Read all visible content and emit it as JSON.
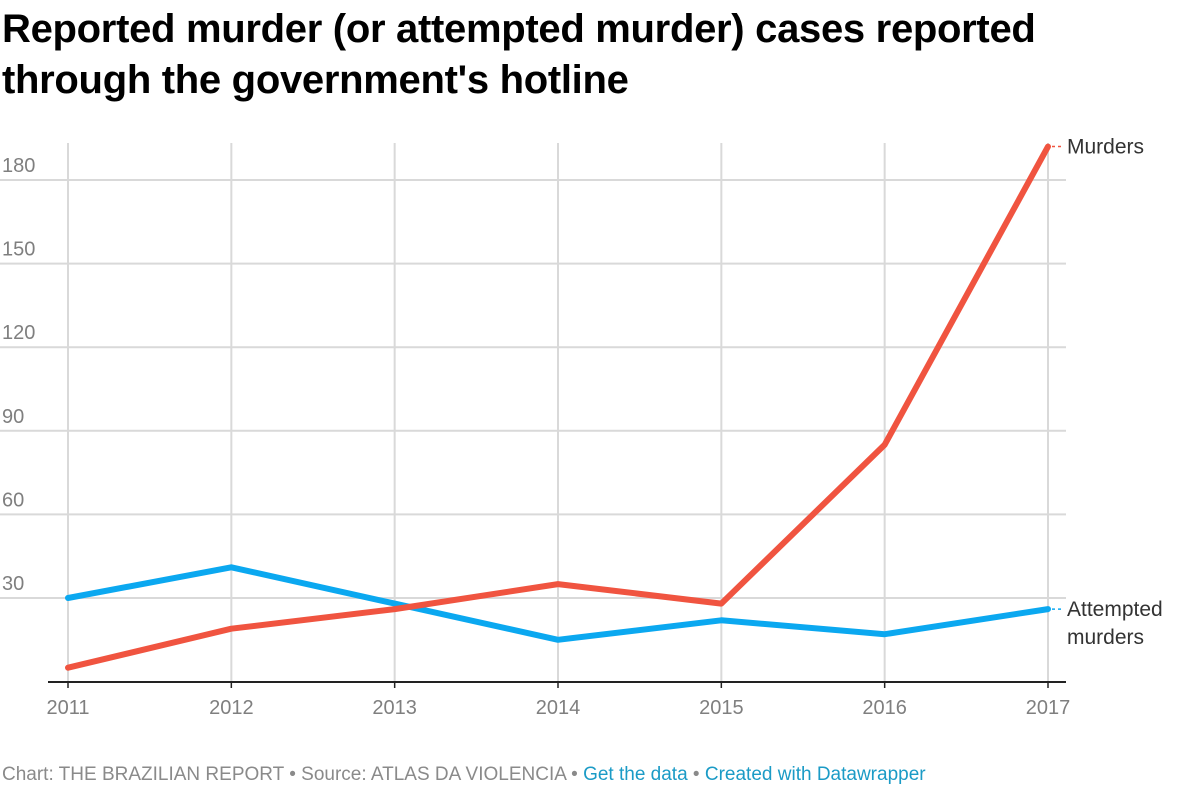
{
  "chart_data": {
    "type": "line",
    "title": "Reported murder (or attempted murder) cases reported through the government's hotline",
    "x": [
      "2011",
      "2012",
      "2013",
      "2014",
      "2015",
      "2016",
      "2017"
    ],
    "series": [
      {
        "name": "Murders",
        "label_lines": [
          "Murders"
        ],
        "color": "#f05440",
        "values": [
          5,
          19,
          26,
          35,
          28,
          85,
          192
        ]
      },
      {
        "name": "Attempted murders",
        "label_lines": [
          "Attempted",
          "murders"
        ],
        "color": "#0ba8f0",
        "values": [
          30,
          41,
          28,
          15,
          22,
          17,
          26
        ]
      }
    ],
    "yticks": [
      30,
      60,
      90,
      120,
      150,
      180
    ],
    "ylim": [
      -4,
      192
    ],
    "grid": true,
    "legend": "direct labels at line ends",
    "xlabel": "",
    "ylabel": ""
  },
  "footer": {
    "chart_credit": "Chart: THE BRAZILIAN REPORT",
    "separator": " • ",
    "source": "Source: ATLAS DA VIOLENCIA",
    "get_data_link": "Get the data",
    "created_with_link": "Created with Datawrapper"
  }
}
